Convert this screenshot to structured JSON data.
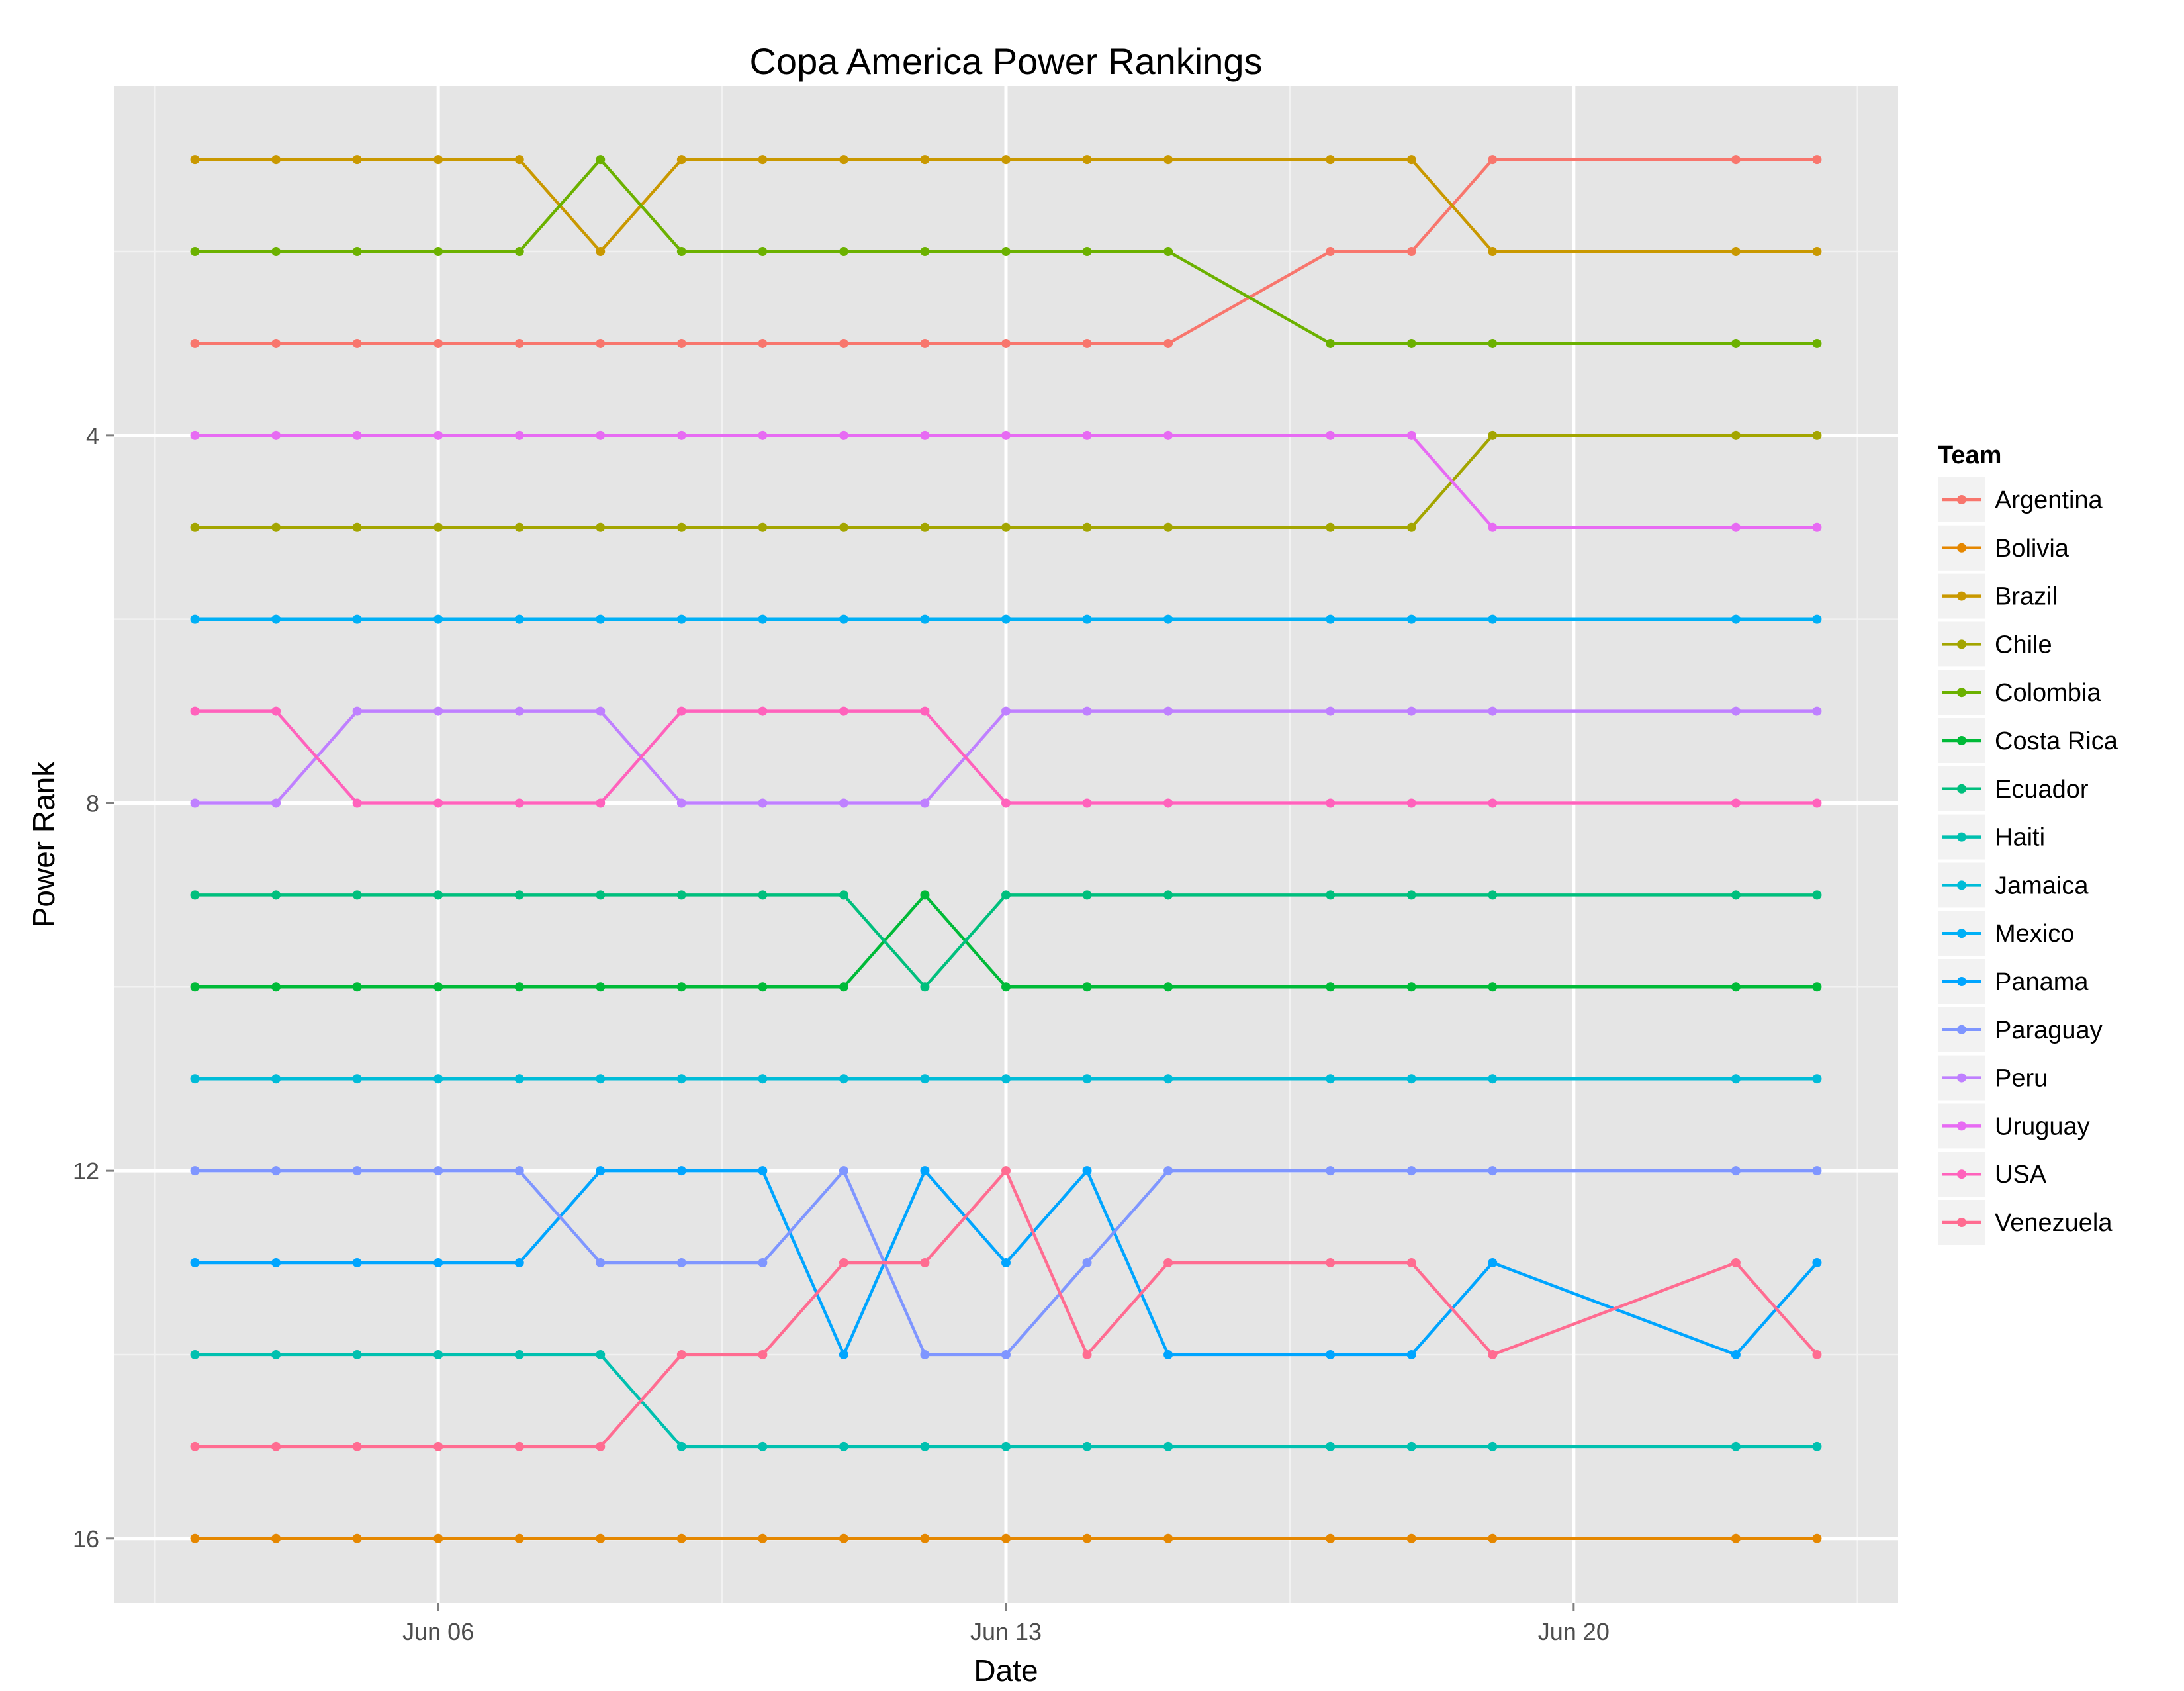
{
  "chart_data": {
    "type": "line",
    "title": "Copa America Power Rankings",
    "xlabel": "Date",
    "ylabel": "Power Rank",
    "x": [
      "2015-06-03",
      "2015-06-04",
      "2015-06-05",
      "2015-06-06",
      "2015-06-07",
      "2015-06-08",
      "2015-06-09",
      "2015-06-10",
      "2015-06-11",
      "2015-06-12",
      "2015-06-13",
      "2015-06-14",
      "2015-06-15",
      "2015-06-17",
      "2015-06-18",
      "2015-06-19",
      "2015-06-22",
      "2015-06-23"
    ],
    "xlim": [
      "2015-06-02",
      "2015-06-24"
    ],
    "x_ticks": [
      {
        "date": "2015-06-06",
        "label": "Jun 06"
      },
      {
        "date": "2015-06-13",
        "label": "Jun 13"
      },
      {
        "date": "2015-06-20",
        "label": "Jun 20"
      }
    ],
    "ylim": [
      16.7,
      0.2
    ],
    "y_ticks": [
      4,
      8,
      12,
      16
    ],
    "y_minor_ticks": [
      2,
      6,
      10,
      14
    ],
    "y_reversed": true,
    "grid": true,
    "panel_background": "#e5e5e5",
    "legend": {
      "title": "Team",
      "position": "right"
    },
    "series": [
      {
        "name": "Argentina",
        "color": "#F8766D",
        "values": [
          3,
          3,
          3,
          3,
          3,
          3,
          3,
          3,
          3,
          3,
          3,
          3,
          3,
          2,
          2,
          1,
          1,
          1
        ]
      },
      {
        "name": "Bolivia",
        "color": "#E58700",
        "values": [
          16,
          16,
          16,
          16,
          16,
          16,
          16,
          16,
          16,
          16,
          16,
          16,
          16,
          16,
          16,
          16,
          16,
          16
        ]
      },
      {
        "name": "Brazil",
        "color": "#C99800",
        "values": [
          1,
          1,
          1,
          1,
          1,
          2,
          1,
          1,
          1,
          1,
          1,
          1,
          1,
          1,
          1,
          2,
          2,
          2
        ]
      },
      {
        "name": "Chile",
        "color": "#A3A500",
        "values": [
          5,
          5,
          5,
          5,
          5,
          5,
          5,
          5,
          5,
          5,
          5,
          5,
          5,
          5,
          5,
          4,
          4,
          4
        ]
      },
      {
        "name": "Colombia",
        "color": "#6BB100",
        "values": [
          2,
          2,
          2,
          2,
          2,
          1,
          2,
          2,
          2,
          2,
          2,
          2,
          2,
          3,
          3,
          3,
          3,
          3
        ]
      },
      {
        "name": "Costa Rica",
        "color": "#00BA38",
        "values": [
          10,
          10,
          10,
          10,
          10,
          10,
          10,
          10,
          10,
          9,
          10,
          10,
          10,
          10,
          10,
          10,
          10,
          10
        ]
      },
      {
        "name": "Ecuador",
        "color": "#00BF7D",
        "values": [
          9,
          9,
          9,
          9,
          9,
          9,
          9,
          9,
          9,
          10,
          9,
          9,
          9,
          9,
          9,
          9,
          9,
          9
        ]
      },
      {
        "name": "Haiti",
        "color": "#00C0AF",
        "values": [
          14,
          14,
          14,
          14,
          14,
          14,
          15,
          15,
          15,
          15,
          15,
          15,
          15,
          15,
          15,
          15,
          15,
          15
        ]
      },
      {
        "name": "Jamaica",
        "color": "#00BCD8",
        "values": [
          11,
          11,
          11,
          11,
          11,
          11,
          11,
          11,
          11,
          11,
          11,
          11,
          11,
          11,
          11,
          11,
          11,
          11
        ]
      },
      {
        "name": "Mexico",
        "color": "#00B0F6",
        "values": [
          6,
          6,
          6,
          6,
          6,
          6,
          6,
          6,
          6,
          6,
          6,
          6,
          6,
          6,
          6,
          6,
          6,
          6
        ]
      },
      {
        "name": "Panama",
        "color": "#00A5FF",
        "values": [
          13,
          13,
          13,
          13,
          13,
          12,
          12,
          12,
          14,
          12,
          13,
          12,
          14,
          14,
          14,
          13,
          14,
          13
        ]
      },
      {
        "name": "Paraguay",
        "color": "#7F96FF",
        "values": [
          12,
          12,
          12,
          12,
          12,
          13,
          13,
          13,
          12,
          14,
          14,
          13,
          12,
          12,
          12,
          12,
          12,
          12
        ]
      },
      {
        "name": "Peru",
        "color": "#BF80FF",
        "values": [
          8,
          8,
          7,
          7,
          7,
          7,
          8,
          8,
          8,
          8,
          7,
          7,
          7,
          7,
          7,
          7,
          7,
          7
        ]
      },
      {
        "name": "Uruguay",
        "color": "#E76BF3",
        "values": [
          4,
          4,
          4,
          4,
          4,
          4,
          4,
          4,
          4,
          4,
          4,
          4,
          4,
          4,
          4,
          5,
          5,
          5
        ]
      },
      {
        "name": "USA",
        "color": "#FF62BC",
        "values": [
          7,
          7,
          8,
          8,
          8,
          8,
          7,
          7,
          7,
          7,
          8,
          8,
          8,
          8,
          8,
          8,
          8,
          8
        ]
      },
      {
        "name": "Venezuela",
        "color": "#FF6C91",
        "values": [
          15,
          15,
          15,
          15,
          15,
          15,
          14,
          14,
          13,
          13,
          12,
          14,
          13,
          13,
          13,
          14,
          13,
          14
        ]
      }
    ]
  }
}
